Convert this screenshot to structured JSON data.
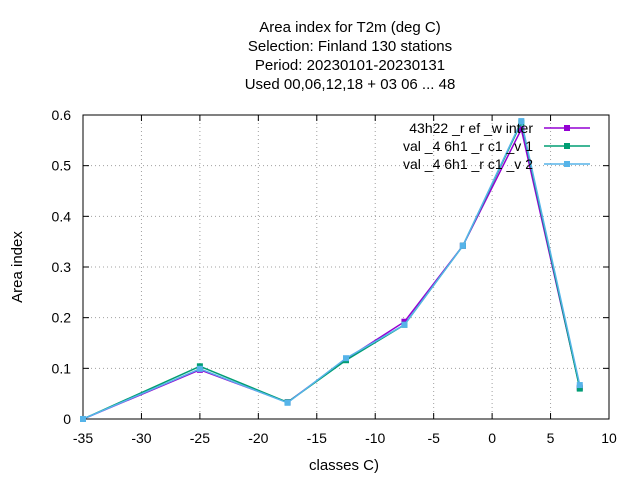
{
  "chart_data": {
    "type": "line",
    "title_lines": [
      "Area index  for T2m (deg C)",
      "Selection: Finland    130 stations",
      "Period: 20230101-20230131",
      "Used  00,06,12,18  + 03 06 ... 48"
    ],
    "xlabel": "classes C)",
    "ylabel": "Area index",
    "xlim": [
      -35,
      10
    ],
    "ylim": [
      0,
      0.6
    ],
    "xticks": [
      "-35",
      "-30",
      "-25",
      "-20",
      "-15",
      "-10",
      "-5",
      "0",
      "5",
      "10"
    ],
    "yticks": [
      "0",
      "0.1",
      "0.2",
      "0.3",
      "0.4",
      "0.5",
      "0.6"
    ],
    "grid": true,
    "legend_position": "top-right",
    "x": [
      -35,
      -25,
      -17.5,
      -12.5,
      -7.5,
      -2.5,
      2.5,
      7.5
    ],
    "series": [
      {
        "name": "43h22 _r ef _w inter",
        "color": "#9400d3",
        "values": [
          0.0,
          0.097,
          0.033,
          0.118,
          0.192,
          0.342,
          0.572,
          0.062
        ]
      },
      {
        "name": "val _4 6h1 _r c1 _v 1",
        "color": "#009e73",
        "values": [
          0.0,
          0.104,
          0.033,
          0.116,
          0.186,
          0.342,
          0.585,
          0.06
        ]
      },
      {
        "name": "val _4 6h1 _r c1 _v 2",
        "color": "#56b4e9",
        "values": [
          0.0,
          0.099,
          0.032,
          0.12,
          0.186,
          0.342,
          0.588,
          0.067
        ]
      }
    ]
  }
}
